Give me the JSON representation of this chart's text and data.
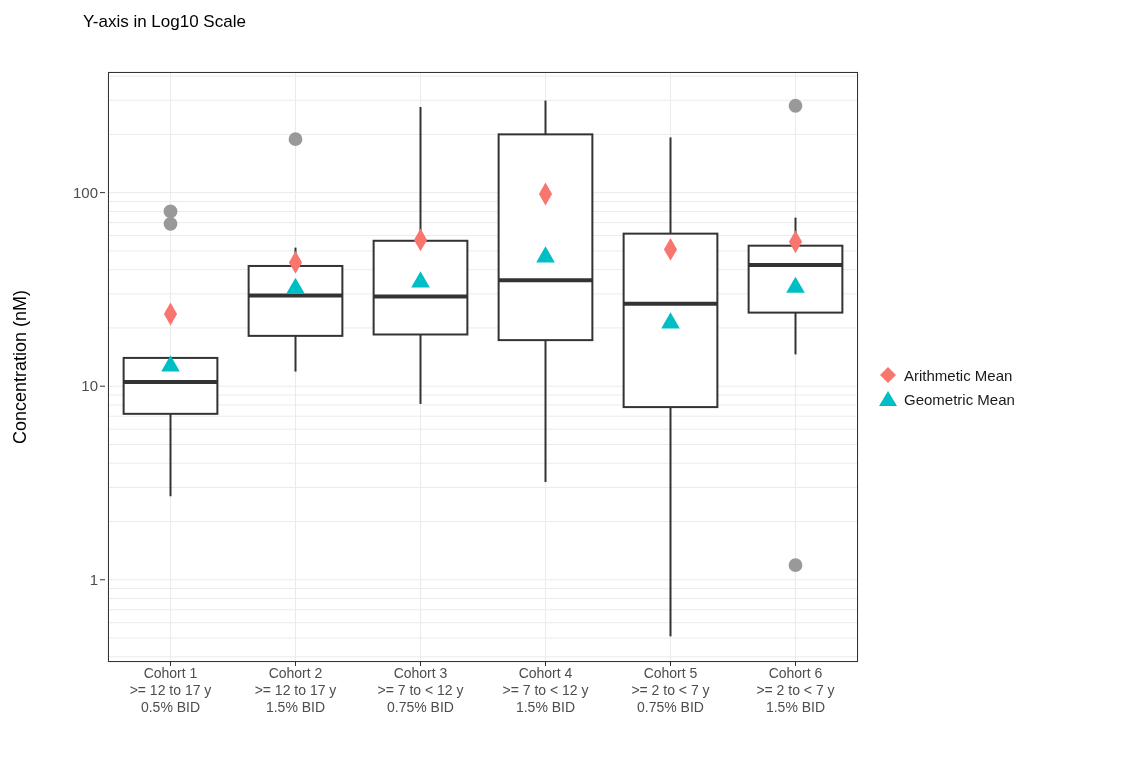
{
  "chart_data": {
    "type": "box",
    "title": "Y-axis in Log10 Scale",
    "ylabel": "Concentration (nM)",
    "categories": [
      "Cohort 1\n>= 12 to 17 y\n0.5% BID",
      "Cohort 2\n>= 12 to 17 y\n1.5% BID",
      "Cohort 3\n>= 7 to < 12 y\n0.75% BID",
      "Cohort 4\n>= 7 to < 12 y\n1.5% BID",
      "Cohort 5\n>= 2 to < 7 y\n0.75% BID",
      "Cohort 6\n>= 2 to < 7 y\n1.5% BID"
    ],
    "boxes": [
      {
        "low": 2.7,
        "q1": 7.2,
        "median": 10.5,
        "q3": 14,
        "high": 14,
        "outliers": [
          69,
          80
        ]
      },
      {
        "low": 11.9,
        "q1": 18.2,
        "median": 29.4,
        "q3": 41.8,
        "high": 52,
        "outliers": [
          189
        ]
      },
      {
        "low": 8.1,
        "q1": 18.5,
        "median": 29.1,
        "q3": 56.4,
        "high": 277
      },
      {
        "low": 3.2,
        "q1": 17.3,
        "median": 35.3,
        "q3": 200,
        "high": 299
      },
      {
        "low": 0.51,
        "q1": 7.8,
        "median": 26.7,
        "q3": 61.4,
        "high": 193
      },
      {
        "low": 14.6,
        "q1": 24,
        "median": 42.3,
        "q3": 53.2,
        "high": 74.3,
        "outliers": [
          1.19,
          281
        ]
      }
    ],
    "series": [
      {
        "name": "Arithmetic Mean",
        "type": "scatter",
        "marker": "diamond",
        "color": "#f8766d",
        "values": [
          23.6,
          43.6,
          57,
          98.4,
          50.9,
          55.7
        ]
      },
      {
        "name": "Geometric Mean",
        "type": "scatter",
        "marker": "triangle",
        "color": "#00bfc4",
        "values": [
          12.7,
          32,
          34.5,
          46.5,
          21.2,
          32.4
        ]
      }
    ],
    "ylim": [
      0.376,
      420
    ],
    "yticks": [
      {
        "value": 0.4,
        "label": null
      },
      {
        "value": 0.5,
        "label": null
      },
      {
        "value": 0.6,
        "label": null
      },
      {
        "value": 0.7,
        "label": null
      },
      {
        "value": 0.8,
        "label": null
      },
      {
        "value": 0.9,
        "label": null
      },
      1,
      {
        "value": 2,
        "label": null
      },
      {
        "value": 3,
        "label": null
      },
      {
        "value": 4,
        "label": null
      },
      {
        "value": 5,
        "label": null
      },
      {
        "value": 6,
        "label": null
      },
      {
        "value": 7,
        "label": null
      },
      {
        "value": 8,
        "label": null
      },
      {
        "value": 9,
        "label": null
      },
      10,
      {
        "value": 20,
        "label": null
      },
      {
        "value": 30,
        "label": null
      },
      {
        "value": 40,
        "label": null
      },
      {
        "value": 50,
        "label": null
      },
      {
        "value": 60,
        "label": null
      },
      {
        "value": 70,
        "label": null
      },
      {
        "value": 80,
        "label": null
      },
      {
        "value": 90,
        "label": null
      },
      100,
      {
        "value": 200,
        "label": null
      },
      {
        "value": 300,
        "label": null
      },
      {
        "value": 400,
        "label": null
      }
    ],
    "log": true,
    "grid": true,
    "legend": "right"
  }
}
